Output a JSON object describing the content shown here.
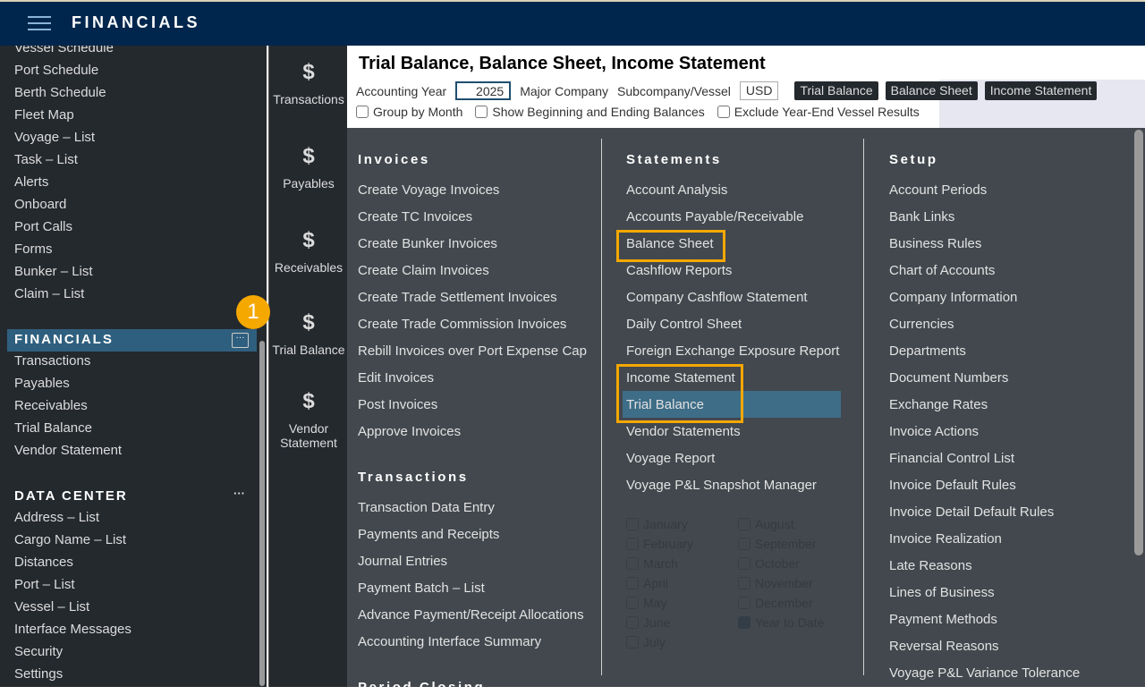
{
  "header": {
    "title": "FINANCIALS",
    "menu_icon": "hamburger-icon"
  },
  "sidebar": {
    "top_items": [
      "Vessel Schedule",
      "Port Schedule",
      "Berth Schedule",
      "Fleet Map",
      "Voyage – List",
      "Task – List",
      "Alerts",
      "Onboard",
      "Port Calls",
      "Forms",
      "Bunker – List",
      "Claim – List"
    ],
    "financials": {
      "title": "FINANCIALS",
      "more": "···",
      "badge": "1",
      "items": [
        "Transactions",
        "Payables",
        "Receivables",
        "Trial Balance",
        "Vendor Statement"
      ]
    },
    "data_center": {
      "title": "DATA CENTER",
      "more": "···",
      "items": [
        "Address – List",
        "Cargo Name – List",
        "Distances",
        "Port – List",
        "Vessel – List",
        "Interface Messages",
        "Security",
        "Settings"
      ]
    }
  },
  "rail": {
    "items": [
      {
        "label": "Transactions",
        "icon": "dollar-exchange-icon"
      },
      {
        "label": "Payables",
        "icon": "payables-icon"
      },
      {
        "label": "Receivables",
        "icon": "receivables-icon"
      },
      {
        "label": "Trial Balance",
        "icon": "scale-icon"
      },
      {
        "label": "Vendor Statement",
        "icon": "vendor-icon"
      }
    ]
  },
  "page": {
    "title": "Trial Balance, Balance Sheet, Income Statement",
    "form": {
      "accounting_year_label": "Accounting Year",
      "accounting_year": "2025",
      "major_company_label": "Major Company",
      "subcompany_label": "Subcompany/Vessel",
      "currency": "USD",
      "options": [
        "Group by Month",
        "Show Beginning and Ending Balances",
        "Exclude Year-End Vessel Results"
      ],
      "months": [
        "January",
        "February",
        "March",
        "April",
        "May",
        "June",
        "July",
        "August",
        "September",
        "October",
        "November",
        "December",
        "Year to Date"
      ],
      "months_checked": [
        "Year to Date"
      ],
      "buttons": [
        "Trial Balance",
        "Balance Sheet",
        "Income Statement"
      ]
    }
  },
  "menu": {
    "invoices": {
      "title": "Invoices",
      "items": [
        "Create Voyage Invoices",
        "Create TC Invoices",
        "Create Bunker Invoices",
        "Create Claim Invoices",
        "Create Trade Settlement Invoices",
        "Create Trade Commission Invoices",
        "Rebill Invoices over Port Expense Cap",
        "Edit Invoices",
        "Post Invoices",
        "Approve Invoices"
      ]
    },
    "transactions": {
      "title": "Transactions",
      "items": [
        "Transaction Data Entry",
        "Payments and Receipts",
        "Journal Entries",
        "Payment Batch – List",
        "Advance Payment/Receipt Allocations",
        "Accounting Interface Summary"
      ]
    },
    "period_closing": {
      "title": "Period Closing"
    },
    "statements": {
      "title": "Statements",
      "items": [
        "Account Analysis",
        "Accounts Payable/Receivable",
        "Balance Sheet",
        "Cashflow Reports",
        "Company Cashflow Statement",
        "Daily Control Sheet",
        "Foreign Exchange Exposure Report",
        "Income Statement",
        "Trial Balance",
        "Vendor Statements",
        "Voyage Report",
        "Voyage P&L Snapshot Manager"
      ],
      "highlighted": [
        "Balance Sheet",
        "Income Statement",
        "Trial Balance"
      ],
      "selected": "Trial Balance"
    },
    "setup": {
      "title": "Setup",
      "items": [
        "Account Periods",
        "Bank Links",
        "Business Rules",
        "Chart of Accounts",
        "Company Information",
        "Currencies",
        "Departments",
        "Document Numbers",
        "Exchange Rates",
        "Invoice Actions",
        "Financial Control List",
        "Invoice Default Rules",
        "Invoice Detail Default Rules",
        "Invoice Realization",
        "Late Reasons",
        "Lines of Business",
        "Payment Methods",
        "Reversal Reasons",
        "Voyage P&L Variance Tolerance"
      ]
    }
  },
  "colors": {
    "header": "#00264d",
    "accent": "#f5a800",
    "selected": "#3e6d87"
  }
}
